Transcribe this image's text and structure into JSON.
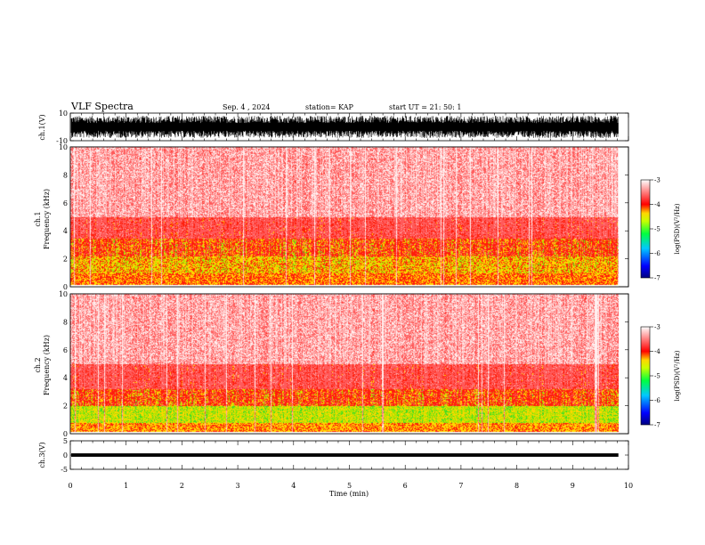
{
  "header": {
    "title": "VLF Spectra",
    "date": "Sep. 4 , 2024",
    "station": "station= KAP",
    "start_ut": "start UT =  21: 50: 1"
  },
  "chart_data": [
    {
      "type": "line",
      "name": "ch1-waveform",
      "ylabel": "ch.1(V)",
      "xlim": [
        0,
        10
      ],
      "ylim": [
        -10,
        10
      ],
      "yticks": [
        "10",
        "-10"
      ],
      "description_values": {
        "amplitude_range": [
          -8,
          8
        ],
        "x_end": 9.82
      }
    },
    {
      "type": "heatmap",
      "name": "ch1-spectrogram",
      "ylabel_line1": "ch.1",
      "ylabel_line2": "Frequency (kHz)",
      "xlim": [
        0,
        10
      ],
      "ylim": [
        0,
        10
      ],
      "yticks": [
        "0",
        "2",
        "4",
        "6",
        "8",
        "10"
      ],
      "colorbar": {
        "label": "log(PSD)(V²/Hz)",
        "range": [
          -7,
          -3
        ],
        "ticks": [
          "-3",
          "-4",
          "-5",
          "-6",
          "-7"
        ],
        "colors": [
          "#000080",
          "#0000ff",
          "#00c8ff",
          "#00ff40",
          "#c8ff00",
          "#ffd700",
          "#ff0000",
          "#ffffff"
        ]
      },
      "data_end_min": 9.82
    },
    {
      "type": "heatmap",
      "name": "ch2-spectrogram",
      "ylabel_line1": "ch.2",
      "ylabel_line2": "Frequency (kHz)",
      "xlim": [
        0,
        10
      ],
      "ylim": [
        0,
        10
      ],
      "yticks": [
        "0",
        "2",
        "4",
        "6",
        "8",
        "10"
      ],
      "colorbar": {
        "label": "log(PSD)(V²/Hz)",
        "range": [
          -7,
          -3
        ],
        "ticks": [
          "-3",
          "-4",
          "-5",
          "-6",
          "-7"
        ],
        "colors": [
          "#000080",
          "#0000ff",
          "#00c8ff",
          "#00ff40",
          "#c8ff00",
          "#ffd700",
          "#ff0000",
          "#ffffff"
        ]
      },
      "data_end_min": 9.82
    },
    {
      "type": "line",
      "name": "ch3-waveform",
      "ylabel": "ch.3(V)",
      "xlim": [
        0,
        10
      ],
      "ylim": [
        -5,
        5
      ],
      "yticks": [
        "5",
        "0",
        "-5"
      ],
      "description_values": {
        "level": 0,
        "band": [
          -0.6,
          0.6
        ],
        "x_end": 9.82
      }
    }
  ],
  "xaxis": {
    "label": "Time (min)",
    "ticks": [
      "0",
      "1",
      "2",
      "3",
      "4",
      "5",
      "6",
      "7",
      "8",
      "9",
      "10"
    ]
  }
}
